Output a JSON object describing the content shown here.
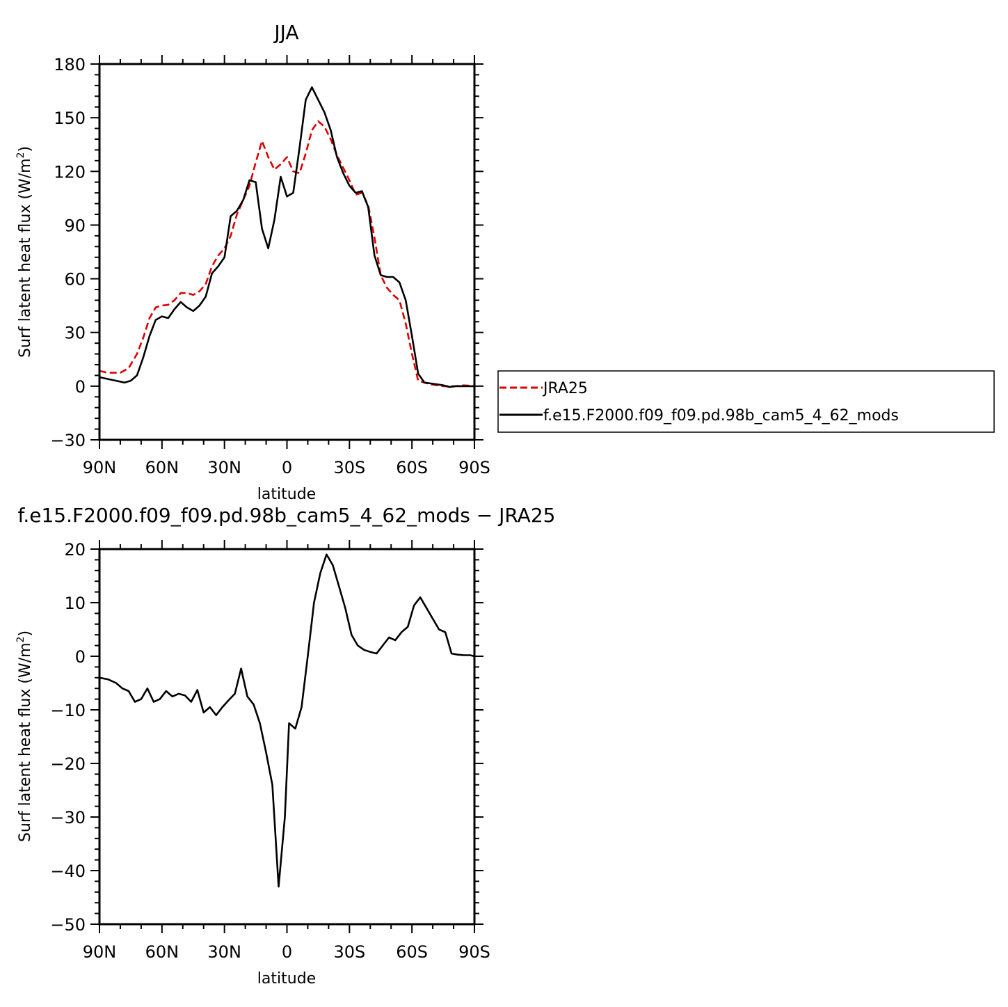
{
  "chart_data": [
    {
      "type": "line",
      "title": "JJA",
      "xlabel": "latitude",
      "ylabel": "Surf latent heat flux (W/m",
      "ylabel_sup": "2",
      "ylabel_close": ")",
      "xlim": [
        90,
        -90
      ],
      "ylim": [
        -30,
        180
      ],
      "x_ticks": [
        90,
        60,
        30,
        0,
        -30,
        -60,
        -90
      ],
      "x_tick_labels": [
        "90N",
        "60N",
        "30N",
        "0",
        "30S",
        "60S",
        "90S"
      ],
      "y_ticks": [
        -30,
        0,
        30,
        60,
        90,
        120,
        150,
        180
      ],
      "y_tick_labels": [
        "−30",
        "0",
        "30",
        "60",
        "90",
        "120",
        "150",
        "180"
      ],
      "legend": "right",
      "series": [
        {
          "name": "JRA25",
          "color": "#dd0000",
          "dash": true,
          "x": [
            90,
            86,
            80,
            76,
            72,
            69,
            66,
            63,
            60,
            57,
            54,
            51,
            48,
            45,
            42,
            39,
            36,
            33,
            30,
            27,
            24,
            21,
            18,
            15,
            12,
            9,
            6,
            3,
            0,
            -3,
            -6,
            -9,
            -12,
            -15,
            -18,
            -21,
            -24,
            -27,
            -30,
            -33,
            -36,
            -39,
            -42,
            -45,
            -48,
            -51,
            -54,
            -57,
            -60,
            -63,
            -66,
            -69,
            -72,
            -75,
            -78,
            -81,
            -84,
            -87,
            -90
          ],
          "values": [
            8.5,
            7.5,
            7.5,
            10,
            18,
            27,
            38,
            44,
            45,
            45.5,
            48,
            52,
            52,
            51,
            53,
            57,
            67,
            73,
            77,
            84,
            96,
            104,
            112,
            125,
            137,
            128,
            121,
            124,
            128,
            120,
            119,
            130,
            143,
            148,
            145,
            138,
            129,
            122,
            115,
            107,
            108,
            101,
            83,
            62,
            55,
            51,
            48,
            35,
            18,
            3,
            2,
            1,
            0.5,
            0,
            0,
            0,
            0.5,
            0.3,
            0
          ]
        },
        {
          "name": "f.e15.F2000.f09_f09.pd.98b_cam5_4_62_mods",
          "color": "#000000",
          "dash": false,
          "x": [
            90,
            86,
            82,
            78,
            75,
            72,
            69,
            66,
            63,
            60,
            57,
            54,
            51,
            48,
            45,
            42,
            39,
            36,
            33,
            30,
            27,
            24,
            21,
            18,
            15,
            12,
            9,
            6,
            3,
            0,
            -3,
            -6,
            -9,
            -12,
            -15,
            -18,
            -21,
            -24,
            -27,
            -30,
            -33,
            -36,
            -39,
            -42,
            -45,
            -48,
            -51,
            -54,
            -57,
            -60,
            -63,
            -66,
            -69,
            -72,
            -75,
            -78,
            -81,
            -84,
            -87,
            -90
          ],
          "values": [
            5,
            4,
            3,
            2,
            3,
            6,
            16,
            28,
            37,
            39,
            38,
            43,
            47,
            44,
            42,
            45,
            50,
            63,
            67,
            72,
            95,
            98,
            104,
            115,
            114,
            88,
            77,
            93,
            117,
            106,
            108,
            133,
            160,
            167,
            160,
            153,
            143,
            128,
            119,
            112,
            108,
            109,
            100,
            73,
            62,
            61,
            61,
            58,
            48,
            28,
            7,
            2,
            1.5,
            1,
            0.5,
            -0.5,
            0,
            0,
            0,
            0
          ]
        }
      ]
    },
    {
      "type": "line",
      "title": "f.e15.F2000.f09_f09.pd.98b_cam5_4_62_mods − JRA25",
      "xlabel": "latitude",
      "ylabel": "Surf latent heat flux (W/m",
      "ylabel_sup": "2",
      "ylabel_close": ")",
      "xlim": [
        90,
        -90
      ],
      "ylim": [
        -50,
        20
      ],
      "x_ticks": [
        90,
        60,
        30,
        0,
        -30,
        -60,
        -90
      ],
      "x_tick_labels": [
        "90N",
        "60N",
        "30N",
        "0",
        "30S",
        "60S",
        "90S"
      ],
      "y_ticks": [
        -50,
        -40,
        -30,
        -20,
        -10,
        0,
        10,
        20
      ],
      "y_tick_labels": [
        "−50",
        "−40",
        "−30",
        "−20",
        "−10",
        "0",
        "10",
        "20"
      ],
      "series": [
        {
          "color": "#000000",
          "x": [
            90,
            86,
            82,
            79,
            76,
            73,
            70,
            67,
            64,
            61,
            58,
            55,
            52,
            49,
            46,
            43,
            40,
            37,
            34,
            31,
            28,
            25,
            22,
            19,
            16,
            13,
            10,
            7,
            4,
            1,
            -1,
            -4,
            -7,
            -10,
            -13,
            -16,
            -19,
            -22,
            -25,
            -28,
            -31,
            -34,
            -37,
            -40,
            -43,
            -46,
            -49,
            -52,
            -55,
            -58,
            -61,
            -64,
            -67,
            -70,
            -73,
            -76,
            -79,
            -82,
            -85,
            -88,
            -90
          ],
          "values": [
            -4,
            -4.3,
            -5,
            -6,
            -6.5,
            -8.5,
            -8,
            -6,
            -8.5,
            -8,
            -6.5,
            -7.5,
            -7,
            -7.3,
            -8.5,
            -6.3,
            -10.5,
            -9.5,
            -11,
            -9.5,
            -8.2,
            -7,
            -2.3,
            -7.5,
            -9,
            -12.5,
            -18,
            -24,
            -43,
            -30,
            -12.5,
            -13.5,
            -9.5,
            0,
            10,
            15.5,
            19,
            17,
            13,
            9,
            4,
            2,
            1.2,
            0.8,
            0.5,
            2,
            3.5,
            3,
            4.5,
            5.5,
            9.5,
            11,
            9,
            7,
            5,
            4.5,
            0.5,
            0.3,
            0.2,
            0.2,
            0
          ]
        }
      ]
    }
  ]
}
